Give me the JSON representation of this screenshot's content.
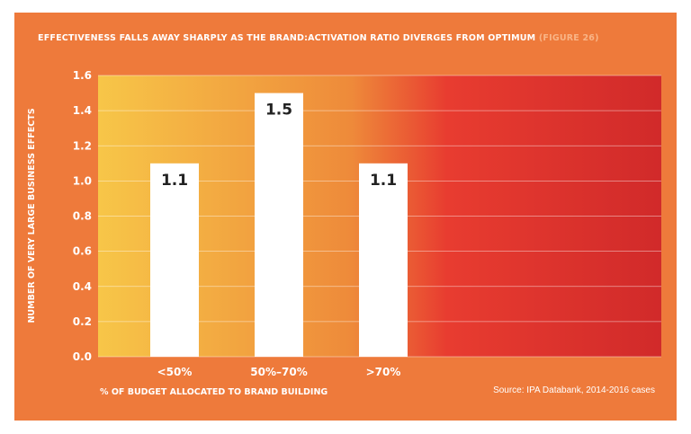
{
  "title": "EFFECTIVENESS FALLS AWAY SHARPLY AS THE BRAND:ACTIVATION RATIO DIVERGES FROM OPTIMUM",
  "figure_label": "(FIGURE 26)",
  "source": "Source: IPA Databank, 2014-2016 cases",
  "colors": {
    "panel": "#ee7a3b",
    "gradient_start": "#f7c648",
    "gradient_mid": "#ee8a3a",
    "gradient_end": "#d12a2a",
    "bars": "#ffffff",
    "value_labels": "#222222"
  },
  "chart_data": {
    "type": "bar",
    "categories": [
      "<50%",
      "50%–70%",
      ">70%"
    ],
    "values": [
      1.1,
      1.5,
      1.1
    ],
    "value_labels": [
      "1.1",
      "1.5",
      "1.1"
    ],
    "xlabel": "% OF BUDGET ALLOCATED TO BRAND BUILDING",
    "ylabel": "NUMBER OF VERY LARGE BUSINESS EFFECTS",
    "ylim": [
      0,
      1.6
    ],
    "yticks": [
      "0.0",
      "0.2",
      "0.4",
      "0.6",
      "0.8",
      "1.0",
      "1.2",
      "1.4",
      "1.6"
    ],
    "grid": true,
    "legend": "none"
  }
}
